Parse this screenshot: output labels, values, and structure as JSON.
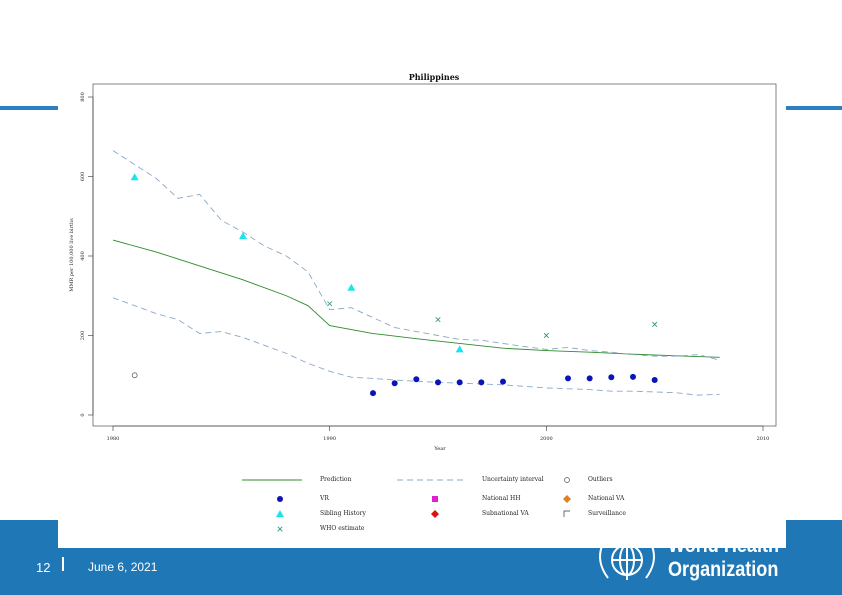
{
  "slide": {
    "page_number": "12",
    "date": "June 6, 2021",
    "org_line1": "World Health",
    "org_line2": "Organization",
    "accent_color": "#1f77b6"
  },
  "chart_data": {
    "type": "line",
    "title": "Philippines",
    "xlabel": "Year",
    "ylabel": "MMR per 100,000 live births",
    "xlim": [
      1980,
      2010
    ],
    "ylim": [
      0,
      800
    ],
    "x_ticks": [
      1980,
      1990,
      2000,
      2010
    ],
    "y_ticks": [
      0,
      200,
      400,
      600,
      800
    ],
    "grid": false,
    "legend_position": "below",
    "series": [
      {
        "name": "Prediction",
        "kind": "line",
        "color": "#2e8b2e",
        "x": [
          1980,
          1982,
          1984,
          1986,
          1988,
          1989,
          1990,
          1992,
          1994,
          1996,
          1998,
          2000,
          2002,
          2004,
          2006,
          2008
        ],
        "y": [
          440,
          410,
          375,
          340,
          300,
          275,
          225,
          205,
          192,
          180,
          168,
          162,
          158,
          153,
          149,
          145
        ]
      },
      {
        "name": "Uncertainty interval upper",
        "kind": "dash",
        "color": "#8aa8c8",
        "x": [
          1980,
          1981,
          1982,
          1983,
          1984,
          1985,
          1986,
          1987,
          1988,
          1989,
          1990,
          1991,
          1992,
          1993,
          1994,
          1995,
          1996,
          1997,
          1998,
          1999,
          2000,
          2001,
          2002,
          2003,
          2004,
          2005,
          2006,
          2007,
          2008
        ],
        "y": [
          665,
          630,
          595,
          545,
          555,
          490,
          460,
          425,
          400,
          360,
          265,
          270,
          245,
          220,
          210,
          200,
          190,
          188,
          180,
          172,
          165,
          170,
          162,
          158,
          152,
          148,
          148,
          152,
          138
        ]
      },
      {
        "name": "Uncertainty interval lower",
        "kind": "dash",
        "color": "#8aa8c8",
        "x": [
          1980,
          1981,
          1982,
          1983,
          1984,
          1985,
          1986,
          1987,
          1988,
          1989,
          1990,
          1991,
          1992,
          1993,
          1994,
          1995,
          1996,
          1997,
          1998,
          1999,
          2000,
          2001,
          2002,
          2003,
          2004,
          2005,
          2006,
          2007,
          2008
        ],
        "y": [
          295,
          275,
          255,
          240,
          205,
          210,
          195,
          175,
          155,
          130,
          110,
          95,
          92,
          88,
          85,
          82,
          80,
          78,
          76,
          72,
          68,
          66,
          64,
          60,
          60,
          58,
          56,
          50,
          52
        ]
      },
      {
        "name": "VR",
        "kind": "circle",
        "color": "#0a14b8",
        "x": [
          1992,
          1993,
          1994,
          1995,
          1996,
          1997,
          1998,
          2001,
          2002,
          2003,
          2004,
          2005
        ],
        "y": [
          55,
          80,
          90,
          82,
          82,
          82,
          84,
          92,
          92,
          95,
          96,
          88
        ]
      },
      {
        "name": "Sibling History",
        "kind": "triangle",
        "color": "#19e6ec",
        "x": [
          1981,
          1986,
          1991,
          1996
        ],
        "y": [
          598,
          450,
          320,
          165
        ]
      },
      {
        "name": "WHO estimate",
        "kind": "x",
        "color": "#2a8f7a",
        "x": [
          1990,
          1995,
          2000,
          2005
        ],
        "y": [
          280,
          240,
          200,
          228
        ]
      },
      {
        "name": "Outliers",
        "kind": "open-circle",
        "color": "#555555",
        "x": [
          1981
        ],
        "y": [
          100
        ]
      }
    ],
    "legend": [
      {
        "label": "Prediction",
        "kind": "line"
      },
      {
        "label": "Uncertainty interval",
        "kind": "dash"
      },
      {
        "label": "Outliers",
        "kind": "open-circle"
      },
      {
        "label": "VR",
        "kind": "circle"
      },
      {
        "label": "National HH",
        "kind": "square"
      },
      {
        "label": "National VA",
        "kind": "diamond"
      },
      {
        "label": "Sibling History",
        "kind": "triangle"
      },
      {
        "label": "Subnational VA",
        "kind": "diamond-red"
      },
      {
        "label": "Surveillance",
        "kind": "corner"
      },
      {
        "label": "WHO estimate",
        "kind": "x"
      }
    ],
    "legend_colors": {
      "square": "#e020d0",
      "diamond": "#e08020",
      "diamond-red": "#e01010"
    }
  }
}
